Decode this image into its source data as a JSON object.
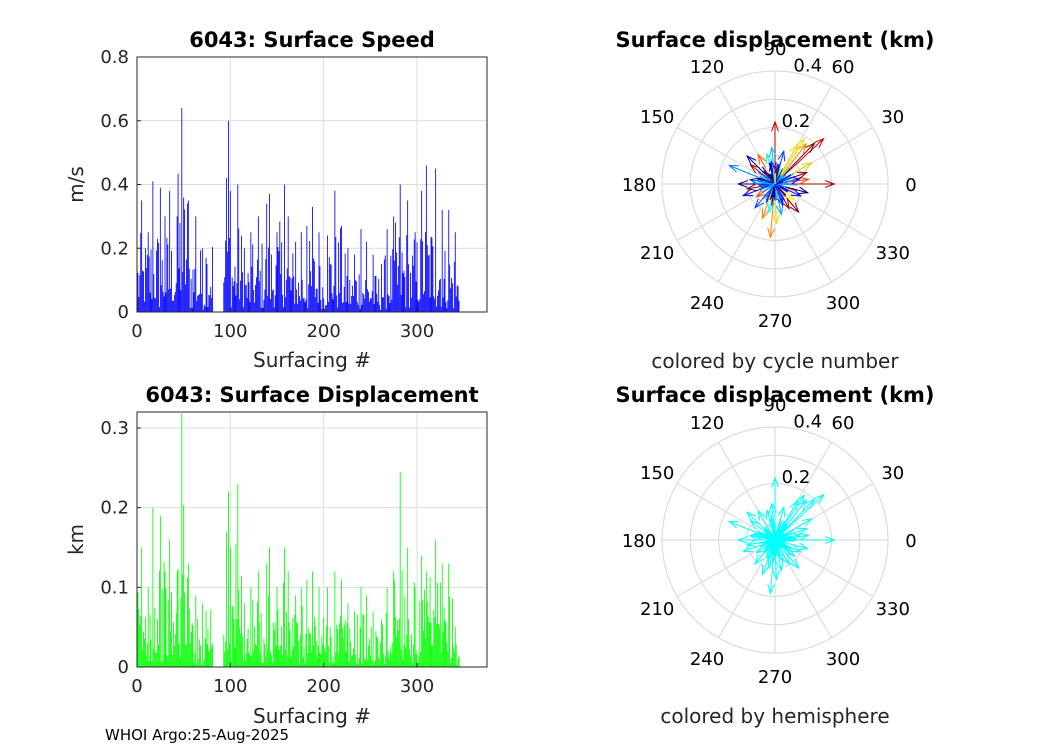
{
  "footer": "WHOI Argo:25-Aug-2025",
  "colors": {
    "speed_bar": "#0000ff",
    "displacement_bar": "#00ff00",
    "grid": "#dcdcdc",
    "hemisphere_arrow": "#00ffff"
  },
  "chart_data": [
    {
      "type": "bar",
      "title": "6043: Surface Speed",
      "xlabel": "Surfacing #",
      "ylabel": "m/s",
      "xlim": [
        0,
        375
      ],
      "ylim": [
        0,
        0.8
      ],
      "xticks": [
        "0",
        "100",
        "200",
        "300"
      ],
      "yticks": [
        "0",
        "0.2",
        "0.4",
        "0.6",
        "0.8"
      ],
      "color": "#0000ff",
      "x_range": [
        1,
        345
      ],
      "gaps": [
        [
          82,
          92
        ]
      ],
      "peaks": [
        [
          5,
          0.35
        ],
        [
          12,
          0.25
        ],
        [
          17,
          0.41
        ],
        [
          25,
          0.39
        ],
        [
          30,
          0.3
        ],
        [
          35,
          0.38
        ],
        [
          43,
          0.3
        ],
        [
          48,
          0.64
        ],
        [
          55,
          0.35
        ],
        [
          63,
          0.3
        ],
        [
          70,
          0.2
        ],
        [
          74,
          0.17
        ],
        [
          96,
          0.42
        ],
        [
          98,
          0.6
        ],
        [
          100,
          0.38
        ],
        [
          108,
          0.4
        ],
        [
          115,
          0.2
        ],
        [
          122,
          0.25
        ],
        [
          130,
          0.3
        ],
        [
          139,
          0.34
        ],
        [
          142,
          0.37
        ],
        [
          150,
          0.25
        ],
        [
          158,
          0.4
        ],
        [
          162,
          0.3
        ],
        [
          170,
          0.22
        ],
        [
          176,
          0.25
        ],
        [
          182,
          0.27
        ],
        [
          188,
          0.33
        ],
        [
          195,
          0.25
        ],
        [
          204,
          0.24
        ],
        [
          212,
          0.38
        ],
        [
          219,
          0.27
        ],
        [
          226,
          0.2
        ],
        [
          233,
          0.18
        ],
        [
          240,
          0.26
        ],
        [
          246,
          0.22
        ],
        [
          253,
          0.18
        ],
        [
          262,
          0.15
        ],
        [
          268,
          0.26
        ],
        [
          275,
          0.3
        ],
        [
          282,
          0.4
        ],
        [
          290,
          0.35
        ],
        [
          298,
          0.25
        ],
        [
          305,
          0.38
        ],
        [
          310,
          0.46
        ],
        [
          320,
          0.45
        ],
        [
          327,
          0.32
        ],
        [
          334,
          0.32
        ],
        [
          341,
          0.25
        ]
      ]
    },
    {
      "type": "bar",
      "title": "6043: Surface Displacement",
      "xlabel": "Surfacing #",
      "ylabel": "km",
      "xlim": [
        0,
        375
      ],
      "ylim": [
        0,
        0.32
      ],
      "xticks": [
        "0",
        "100",
        "200",
        "300"
      ],
      "yticks": [
        "0",
        "0.1",
        "0.2",
        "0.3"
      ],
      "color": "#00ff00",
      "x_range": [
        1,
        345
      ],
      "gaps": [
        [
          82,
          92
        ]
      ],
      "peaks": [
        [
          5,
          0.15
        ],
        [
          12,
          0.1
        ],
        [
          17,
          0.2
        ],
        [
          25,
          0.19
        ],
        [
          30,
          0.12
        ],
        [
          35,
          0.16
        ],
        [
          43,
          0.12
        ],
        [
          48,
          0.318
        ],
        [
          55,
          0.13
        ],
        [
          63,
          0.09
        ],
        [
          70,
          0.08
        ],
        [
          74,
          0.07
        ],
        [
          96,
          0.17
        ],
        [
          98,
          0.22
        ],
        [
          100,
          0.15
        ],
        [
          108,
          0.23
        ],
        [
          115,
          0.08
        ],
        [
          122,
          0.1
        ],
        [
          130,
          0.12
        ],
        [
          139,
          0.13
        ],
        [
          142,
          0.15
        ],
        [
          150,
          0.1
        ],
        [
          158,
          0.15
        ],
        [
          162,
          0.12
        ],
        [
          170,
          0.09
        ],
        [
          176,
          0.1
        ],
        [
          182,
          0.11
        ],
        [
          188,
          0.12
        ],
        [
          195,
          0.1
        ],
        [
          204,
          0.1
        ],
        [
          212,
          0.12
        ],
        [
          219,
          0.11
        ],
        [
          226,
          0.08
        ],
        [
          233,
          0.07
        ],
        [
          240,
          0.1
        ],
        [
          246,
          0.09
        ],
        [
          253,
          0.07
        ],
        [
          262,
          0.06
        ],
        [
          268,
          0.1
        ],
        [
          275,
          0.12
        ],
        [
          282,
          0.245
        ],
        [
          290,
          0.15
        ],
        [
          298,
          0.1
        ],
        [
          305,
          0.14
        ],
        [
          310,
          0.12
        ],
        [
          320,
          0.16
        ],
        [
          327,
          0.13
        ],
        [
          334,
          0.13
        ],
        [
          341,
          0.05
        ]
      ]
    },
    {
      "type": "polar-quiver",
      "title": "Surface displacement (km)",
      "caption": "colored by cycle number",
      "rmax": 0.4,
      "radial_ticks": [
        "0.2",
        "0.4"
      ],
      "angle_labels": [
        "0",
        "30",
        "60",
        "90",
        "120",
        "150",
        "180",
        "210",
        "240",
        "270",
        "300",
        "330"
      ],
      "arrows": [
        {
          "angle": 0,
          "r": 0.21,
          "color": "#b30000"
        },
        {
          "angle": 8,
          "r": 0.12,
          "color": "#ff4000"
        },
        {
          "angle": 20,
          "r": 0.12,
          "color": "#800000"
        },
        {
          "angle": 30,
          "r": 0.15,
          "color": "#e0d000"
        },
        {
          "angle": 43,
          "r": 0.235,
          "color": "#cc0000"
        },
        {
          "angle": 46,
          "r": 0.2,
          "color": "#800000"
        },
        {
          "angle": 52,
          "r": 0.18,
          "color": "#ff8000"
        },
        {
          "angle": 57,
          "r": 0.19,
          "color": "#e6e600"
        },
        {
          "angle": 60,
          "r": 0.16,
          "color": "#ffd000"
        },
        {
          "angle": 75,
          "r": 0.12,
          "color": "#0040ff"
        },
        {
          "angle": 90,
          "r": 0.22,
          "color": "#cc0000"
        },
        {
          "angle": 95,
          "r": 0.13,
          "color": "#00c0ff"
        },
        {
          "angle": 105,
          "r": 0.11,
          "color": "#00ffd0"
        },
        {
          "angle": 120,
          "r": 0.12,
          "color": "#ff6000"
        },
        {
          "angle": 135,
          "r": 0.14,
          "color": "#0000aa"
        },
        {
          "angle": 142,
          "r": 0.11,
          "color": "#a00000"
        },
        {
          "angle": 158,
          "r": 0.175,
          "color": "#0080ff"
        },
        {
          "angle": 165,
          "r": 0.08,
          "color": "#ffff00"
        },
        {
          "angle": 180,
          "r": 0.13,
          "color": "#000080"
        },
        {
          "angle": 190,
          "r": 0.1,
          "color": "#800000"
        },
        {
          "angle": 200,
          "r": 0.12,
          "color": "#0000ff"
        },
        {
          "angle": 215,
          "r": 0.08,
          "color": "#ff4000"
        },
        {
          "angle": 230,
          "r": 0.11,
          "color": "#0040ff"
        },
        {
          "angle": 250,
          "r": 0.13,
          "color": "#ff8000"
        },
        {
          "angle": 258,
          "r": 0.1,
          "color": "#00ffff"
        },
        {
          "angle": 265,
          "r": 0.19,
          "color": "#ff8000"
        },
        {
          "angle": 272,
          "r": 0.14,
          "color": "#e0e000"
        },
        {
          "angle": 282,
          "r": 0.11,
          "color": "#00a0ff"
        },
        {
          "angle": 300,
          "r": 0.1,
          "color": "#b00000"
        },
        {
          "angle": 310,
          "r": 0.13,
          "color": "#800000"
        },
        {
          "angle": 320,
          "r": 0.09,
          "color": "#ffff00"
        },
        {
          "angle": 335,
          "r": 0.1,
          "color": "#0000ff"
        },
        {
          "angle": 345,
          "r": 0.12,
          "color": "#000080"
        },
        {
          "angle": 12,
          "r": 0.09,
          "color": "#0000ff"
        },
        {
          "angle": 100,
          "r": 0.08,
          "color": "#0000cc"
        },
        {
          "angle": 245,
          "r": 0.07,
          "color": "#0000ff"
        },
        {
          "angle": 170,
          "r": 0.09,
          "color": "#0030ff"
        },
        {
          "angle": 290,
          "r": 0.08,
          "color": "#0000ff"
        }
      ]
    },
    {
      "type": "polar-quiver",
      "title": "Surface displacement (km)",
      "caption": "colored by hemisphere",
      "rmax": 0.4,
      "radial_ticks": [
        "0.2",
        "0.4"
      ],
      "angle_labels": [
        "0",
        "30",
        "60",
        "90",
        "120",
        "150",
        "180",
        "210",
        "240",
        "270",
        "300",
        "330"
      ],
      "color": "#00ffff",
      "arrows": [
        {
          "angle": 0,
          "r": 0.21
        },
        {
          "angle": 8,
          "r": 0.12
        },
        {
          "angle": 20,
          "r": 0.12
        },
        {
          "angle": 30,
          "r": 0.15
        },
        {
          "angle": 43,
          "r": 0.235
        },
        {
          "angle": 46,
          "r": 0.2
        },
        {
          "angle": 52,
          "r": 0.18
        },
        {
          "angle": 57,
          "r": 0.19
        },
        {
          "angle": 60,
          "r": 0.16
        },
        {
          "angle": 75,
          "r": 0.12
        },
        {
          "angle": 90,
          "r": 0.22
        },
        {
          "angle": 95,
          "r": 0.13
        },
        {
          "angle": 105,
          "r": 0.11
        },
        {
          "angle": 120,
          "r": 0.12
        },
        {
          "angle": 135,
          "r": 0.14
        },
        {
          "angle": 142,
          "r": 0.11
        },
        {
          "angle": 158,
          "r": 0.175
        },
        {
          "angle": 165,
          "r": 0.08
        },
        {
          "angle": 180,
          "r": 0.13
        },
        {
          "angle": 190,
          "r": 0.1
        },
        {
          "angle": 200,
          "r": 0.12
        },
        {
          "angle": 215,
          "r": 0.08
        },
        {
          "angle": 230,
          "r": 0.11
        },
        {
          "angle": 250,
          "r": 0.13
        },
        {
          "angle": 258,
          "r": 0.1
        },
        {
          "angle": 265,
          "r": 0.19
        },
        {
          "angle": 272,
          "r": 0.14
        },
        {
          "angle": 282,
          "r": 0.11
        },
        {
          "angle": 300,
          "r": 0.1
        },
        {
          "angle": 310,
          "r": 0.13
        },
        {
          "angle": 320,
          "r": 0.09
        },
        {
          "angle": 335,
          "r": 0.1
        },
        {
          "angle": 345,
          "r": 0.12
        },
        {
          "angle": 12,
          "r": 0.09
        },
        {
          "angle": 100,
          "r": 0.08
        },
        {
          "angle": 245,
          "r": 0.07
        },
        {
          "angle": 170,
          "r": 0.09
        },
        {
          "angle": 290,
          "r": 0.08
        }
      ]
    }
  ]
}
